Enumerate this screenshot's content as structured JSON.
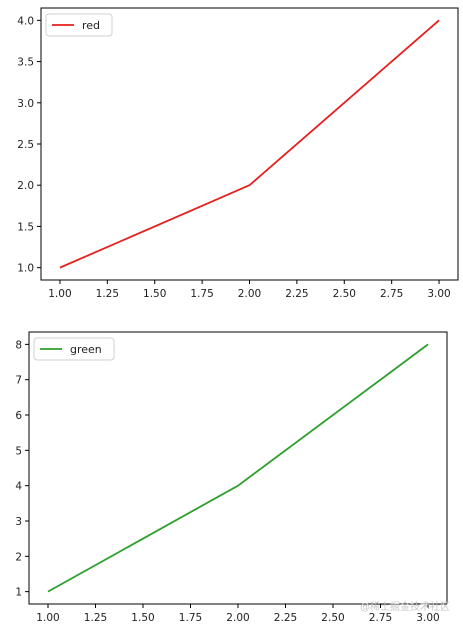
{
  "chart_data": [
    {
      "type": "line",
      "x": [
        1.0,
        2.0,
        3.0
      ],
      "series": [
        {
          "name": "red",
          "color": "#e6201c",
          "values": [
            1.0,
            2.0,
            4.0
          ]
        }
      ],
      "xticks": [
        "1.00",
        "1.25",
        "1.50",
        "1.75",
        "2.00",
        "2.25",
        "2.50",
        "2.75",
        "3.00"
      ],
      "yticks": [
        "1.0",
        "1.5",
        "2.0",
        "2.5",
        "3.0",
        "3.5",
        "4.0"
      ],
      "xlim": [
        0.9,
        3.1
      ],
      "ylim": [
        0.85,
        4.15
      ],
      "grid": false,
      "legend": "upper left"
    },
    {
      "type": "line",
      "x": [
        1.0,
        2.0,
        3.0
      ],
      "series": [
        {
          "name": "green",
          "color": "#2ca02c",
          "values": [
            1,
            4,
            8
          ]
        }
      ],
      "xticks": [
        "1.00",
        "1.25",
        "1.50",
        "1.75",
        "2.00",
        "2.25",
        "2.50",
        "2.75",
        "3.00"
      ],
      "yticks": [
        "1",
        "2",
        "3",
        "4",
        "5",
        "6",
        "7",
        "8"
      ],
      "xlim": [
        0.9,
        3.1
      ],
      "ylim": [
        0.65,
        8.35
      ],
      "grid": false,
      "legend": "upper left"
    }
  ],
  "watermark": "@稀土掘金技术社区"
}
